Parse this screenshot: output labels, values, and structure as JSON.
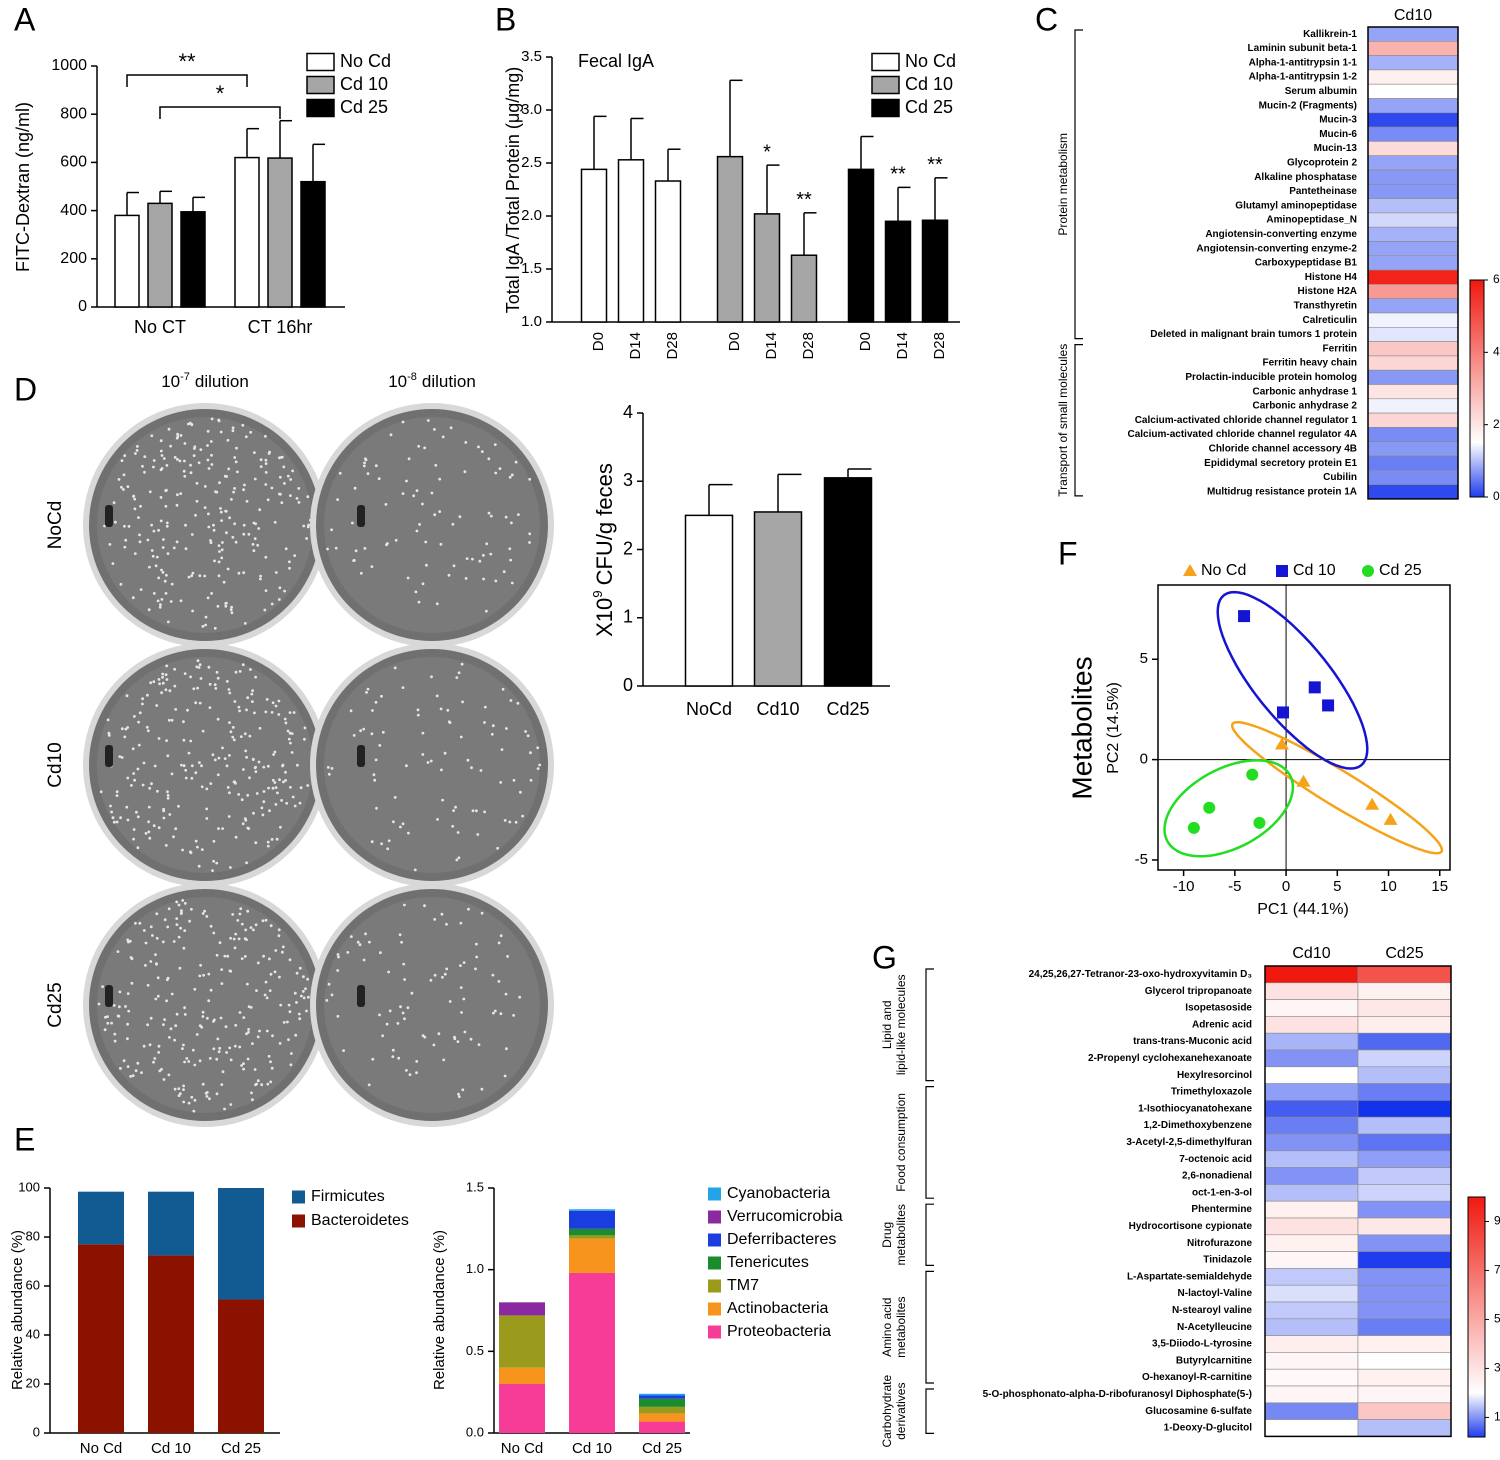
{
  "chart_data": [
    {
      "panel": "A",
      "type": "bar",
      "ylabel": "FITC-Dextran (ng/ml)",
      "categories": [
        "No CT",
        "CT 16hr"
      ],
      "series": [
        {
          "name": "No Cd",
          "color": "#ffffff",
          "values": [
            380,
            620
          ],
          "errors": [
            95,
            120
          ],
          "comparison": "**"
        },
        {
          "name": "Cd 10",
          "color": "#a6a6a6",
          "values": [
            430,
            618
          ],
          "errors": [
            50,
            155
          ],
          "comparison": "*"
        },
        {
          "name": "Cd 25",
          "color": "#000000",
          "values": [
            395,
            520
          ],
          "errors": [
            60,
            155
          ]
        }
      ],
      "ylim": [
        0,
        1000
      ],
      "yticks": [
        0,
        200,
        400,
        600,
        800,
        1000
      ]
    },
    {
      "panel": "B",
      "type": "bar",
      "subtitle": "Fecal IgA",
      "ylabel": "Total IgA /Total Protein (μg/mg)",
      "group_by": "series",
      "categories": [
        "D0",
        "D14",
        "D28"
      ],
      "series": [
        {
          "name": "No Cd",
          "color": "#ffffff",
          "values": [
            2.44,
            2.53,
            2.33
          ],
          "errors": [
            0.5,
            0.39,
            0.3
          ],
          "significance": [
            null,
            null,
            null
          ]
        },
        {
          "name": "Cd 10",
          "color": "#a6a6a6",
          "values": [
            2.56,
            2.02,
            1.63
          ],
          "errors": [
            0.72,
            0.46,
            0.4
          ],
          "significance": [
            null,
            "*",
            "**"
          ]
        },
        {
          "name": "Cd 25",
          "color": "#000000",
          "values": [
            2.44,
            1.95,
            1.96
          ],
          "errors": [
            0.31,
            0.32,
            0.4
          ],
          "significance": [
            null,
            "**",
            "**"
          ]
        }
      ],
      "ylim": [
        1.0,
        3.5
      ],
      "yticks": [
        {
          "value": 1.0,
          "label": "1.0"
        },
        {
          "value": 1.5,
          "label": "1.5"
        },
        {
          "value": 2.0,
          "label": "2.0"
        },
        {
          "value": 2.5,
          "label": "2.5"
        },
        {
          "value": 3.0,
          "label": "3.0"
        },
        {
          "value": 3.5,
          "label": "3.5"
        }
      ]
    },
    {
      "panel": "C",
      "type": "heatmap",
      "columns": [
        "Cd10"
      ],
      "colormap": [
        "#1f3ded",
        "#ffffff",
        "#f0190f"
      ],
      "clim": [
        0,
        6
      ],
      "cmid": 1.5,
      "cticks": [
        0,
        2,
        4,
        6
      ],
      "groups": [
        {
          "name": [
            "Protein metabolism"
          ],
          "rows": [
            "Kallikrein-1",
            "Laminin subunit beta-1",
            "Alpha-1-antitrypsin 1-1",
            "Alpha-1-antitrypsin 1-2",
            "Serum albumin",
            "Mucin-2 (Fragments)",
            "Mucin-3",
            "Mucin-6",
            "Mucin-13",
            "Glycoprotein 2",
            "Alkaline phosphatase",
            "Pantetheinase",
            "Glutamyl aminopeptidase",
            "Aminopeptidase_N",
            "Angiotensin-converting enzyme",
            "Angiotensin-converting enzyme-2",
            "Carboxypeptidase B1",
            "Histone H4",
            "Histone H2A",
            "Transthyretin",
            "Calreticulin",
            "Deleted in malignant brain tumors 1 protein"
          ],
          "values": [
            [
              0.8
            ],
            [
              3.0
            ],
            [
              0.9
            ],
            [
              1.8
            ],
            [
              1.5
            ],
            [
              0.8
            ],
            [
              0.1
            ],
            [
              0.6
            ],
            [
              2.2
            ],
            [
              0.8
            ],
            [
              0.7
            ],
            [
              0.7
            ],
            [
              1.0
            ],
            [
              1.2
            ],
            [
              0.9
            ],
            [
              0.8
            ],
            [
              0.8
            ],
            [
              5.8
            ],
            [
              3.5
            ],
            [
              0.8
            ],
            [
              1.4
            ],
            [
              1.3
            ]
          ]
        },
        {
          "name": [
            "Transport of small molecules"
          ],
          "rows": [
            "Ferritin",
            "Ferritin heavy chain",
            "Prolactin-inducible protein homolog",
            "Carbonic anhydrase 1",
            "Carbonic anhydrase 2",
            "Calcium-activated chloride channel regulator 1",
            "Calcium-activated chloride channel regulator 4A",
            "Chloride channel accessory 4B",
            "Epididymal secretory protein E1",
            "Cubilin",
            "Multidrug resistance protein 1A"
          ],
          "values": [
            [
              2.6
            ],
            [
              2.3
            ],
            [
              0.7
            ],
            [
              2.0
            ],
            [
              1.4
            ],
            [
              2.3
            ],
            [
              0.6
            ],
            [
              0.7
            ],
            [
              0.5
            ],
            [
              0.6
            ],
            [
              0.1
            ]
          ]
        }
      ]
    },
    {
      "type": "bar",
      "ylabel": [
        "X10",
        "9",
        "CFU/g feces"
      ],
      "categories": [
        "NoCd",
        "Cd10",
        "Cd25"
      ],
      "values": [
        2.5,
        2.55,
        3.05
      ],
      "errors": [
        0.45,
        0.55,
        0.13
      ],
      "colors": [
        "#ffffff",
        "#a6a6a6",
        "#000000"
      ],
      "ylim": [
        0,
        4
      ],
      "yticks": [
        0,
        1,
        2,
        3,
        4
      ]
    },
    {
      "panel": "E",
      "type": "bar",
      "stacked": true,
      "ylabel": "Relative abundance (%)",
      "categories": [
        "No Cd",
        "Cd 10",
        "Cd 25"
      ],
      "series": [
        {
          "name": "Bacteroidetes",
          "color": "#8c1200",
          "values": [
            77,
            72.5,
            54.5
          ]
        },
        {
          "name": "Firmicutes",
          "color": "#125a92",
          "values": [
            21.5,
            26,
            45.5
          ]
        }
      ],
      "ylim": [
        0,
        100
      ],
      "yticks": [
        0,
        20,
        40,
        60,
        80,
        100
      ]
    },
    {
      "type": "bar",
      "stacked": true,
      "ylabel": "Relative abundance (%)",
      "categories": [
        "No Cd",
        "Cd 10",
        "Cd 25"
      ],
      "series": [
        {
          "name": "Proteobacteria",
          "color": "#f73c97",
          "values": [
            0.3,
            0.98,
            0.07
          ]
        },
        {
          "name": "Actinobacteria",
          "color": "#f7941d",
          "values": [
            0.1,
            0.21,
            0.05
          ]
        },
        {
          "name": "TM7",
          "color": "#9a9a1c",
          "values": [
            0.32,
            0.02,
            0.04
          ]
        },
        {
          "name": "Tenericutes",
          "color": "#1b8c2c",
          "values": [
            0,
            0.04,
            0.05
          ]
        },
        {
          "name": "Deferribacteres",
          "color": "#1a3de0",
          "values": [
            0,
            0.11,
            0.02
          ]
        },
        {
          "name": "Verrucomicrobia",
          "color": "#8b2aa0",
          "values": [
            0.08,
            0,
            0
          ]
        },
        {
          "name": "Cyanobacteria",
          "color": "#23a3e8",
          "values": [
            0,
            0.01,
            0.01
          ]
        }
      ],
      "ylim": [
        0,
        1.5
      ],
      "yticks": [
        {
          "value": 0,
          "label": "0.0"
        },
        {
          "value": 0.5,
          "label": "0.5"
        },
        {
          "value": 1.0,
          "label": "1.0"
        },
        {
          "value": 1.5,
          "label": "1.5"
        }
      ]
    },
    {
      "panel": "F",
      "type": "scatter",
      "title": "Metabolites",
      "xlabel": "PC1 (44.1%)",
      "ylabel": "PC2 (14.5%)",
      "zero_lines": true,
      "series": [
        {
          "name": "No Cd",
          "color": "#f5a31a",
          "marker": "triangle",
          "x": [
            -0.4,
            1.7,
            8.4,
            10.2
          ],
          "y": [
            0.75,
            -1.1,
            -2.25,
            -3.0
          ]
        },
        {
          "name": "Cd 10",
          "color": "#1414d2",
          "marker": "square",
          "x": [
            -4.1,
            -0.3,
            2.8,
            4.1
          ],
          "y": [
            7.15,
            2.35,
            3.6,
            2.7
          ]
        },
        {
          "name": "Cd 25",
          "color": "#22dd22",
          "marker": "circle",
          "x": [
            -3.3,
            -7.5,
            -9.0,
            -2.6
          ],
          "y": [
            -0.75,
            -2.4,
            -3.4,
            -3.15
          ]
        }
      ],
      "xlim": [
        -12.5,
        16
      ],
      "xticks": [
        -10,
        -5,
        0,
        5,
        10,
        15
      ],
      "ylim": [
        -5.5,
        8.7
      ],
      "yticks": [
        -5,
        0,
        5
      ]
    },
    {
      "panel": "G",
      "type": "heatmap",
      "columns": [
        "Cd10",
        "Cd25"
      ],
      "colormap": [
        "#1f3ded",
        "#ffffff",
        "#f0190f"
      ],
      "clim": [
        0.2,
        10
      ],
      "cmid": 2,
      "cticks": [
        1,
        3,
        5,
        7,
        9
      ],
      "groups": [
        {
          "name": [
            "Lipid and",
            "lipid-like molecules"
          ],
          "rows": [
            "24,25,26,27-Tetranor-23-oxo-hydroxyvitamin D₃",
            "Glycerol tripropanoate",
            "Isopetasoside",
            "Adrenic acid",
            "trans-trans-Muconic acid",
            "2-Propenyl cyclohexanehexanoate",
            "Hexylresorcinol"
          ],
          "values": [
            [
              10,
              8
            ],
            [
              3,
              2.5
            ],
            [
              2.3,
              2.8
            ],
            [
              3,
              2.6
            ],
            [
              1.3,
              0.6
            ],
            [
              1,
              1.6
            ],
            [
              2,
              1.4
            ]
          ]
        },
        {
          "name": [
            "Food consumption"
          ],
          "rows": [
            "Trimethyloxazole",
            "1-Isothiocyanatohexane",
            "1,2-Dimethoxybenzene",
            "3-Acetyl-2,5-dimethylfuran",
            "7-octenoic acid",
            "2,6-nonadienal",
            "oct-1-en-3-ol"
          ],
          "values": [
            [
              1.1,
              0.8
            ],
            [
              0.5,
              0.1
            ],
            [
              0.8,
              1.4
            ],
            [
              1,
              0.7
            ],
            [
              1.4,
              1.1
            ],
            [
              1,
              1.5
            ],
            [
              1.4,
              1.6
            ]
          ]
        },
        {
          "name": [
            "Drug",
            "metabolites"
          ],
          "rows": [
            "Phentermine",
            "Hydrocortisone cypionate",
            "Nitrofurazone",
            "Tinidazole"
          ],
          "values": [
            [
              2.5,
              1
            ],
            [
              3,
              2.8
            ],
            [
              2.5,
              1
            ],
            [
              2.3,
              0.2
            ]
          ]
        },
        {
          "name": [
            "Amino acid",
            "metabolites"
          ],
          "rows": [
            "L-Aspartate-semialdehyde",
            "N-lactoyl-Valine",
            "N-stearoyl valine",
            "N-Acetylleucine",
            "3,5-Diiodo-L-tyrosine",
            "Butyrylcarnitine",
            "O-hexanoyl-R-carnitine"
          ],
          "values": [
            [
              1.5,
              1
            ],
            [
              1.7,
              1
            ],
            [
              1.5,
              1
            ],
            [
              1.4,
              0.8
            ],
            [
              2.6,
              2.5
            ],
            [
              2.3,
              2
            ],
            [
              2.2,
              2.5
            ]
          ]
        },
        {
          "name": [
            "Carbohydrate",
            "derivatives"
          ],
          "rows": [
            "5-O-phosphonato-alpha-D-ribofuranosyl Diphosphate(5-)",
            "Glucosamine 6-sulfate",
            "1-Deoxy-D-glucitol"
          ],
          "values": [
            [
              2.3,
              2.3
            ],
            [
              0.9,
              4
            ],
            [
              2,
              1.4
            ]
          ]
        }
      ]
    }
  ],
  "plates": {
    "panel": "D",
    "columns": [
      [
        "10",
        "-7",
        "dilution"
      ],
      [
        "10",
        "-8",
        "dilution"
      ]
    ],
    "rows": [
      "NoCd",
      "Cd10",
      "Cd25"
    ]
  }
}
